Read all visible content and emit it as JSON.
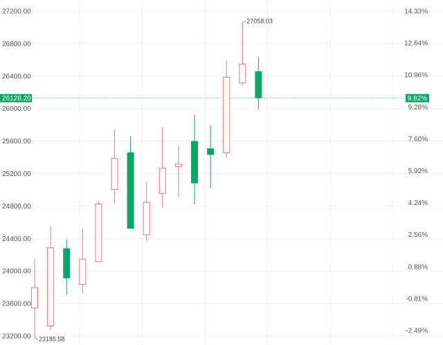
{
  "chart_data": {
    "type": "candlestick",
    "y_ticks_left": [
      "27200.00",
      "26800.00",
      "26400.00",
      "26000.00",
      "25600.00",
      "25200.00",
      "24800.00",
      "24400.00",
      "24000.00",
      "23600.00",
      "23200.00"
    ],
    "y_ticks_right": [
      "14.33%",
      "12.64%",
      "10.96%",
      "9.28%",
      "7.60%",
      "5.92%",
      "4.24%",
      "2.56%",
      "0.88%",
      "-0.81%",
      "-2.49%"
    ],
    "ylim": [
      23180,
      27240
    ],
    "candles": [
      {
        "open": 23540,
        "high": 24150,
        "low": 23185.58,
        "close": 23800
      },
      {
        "open": 23320,
        "high": 24550,
        "low": 23270,
        "close": 24290
      },
      {
        "open": 24280,
        "high": 24390,
        "low": 23700,
        "close": 23910
      },
      {
        "open": 23830,
        "high": 24520,
        "low": 23720,
        "close": 24150
      },
      {
        "open": 24110,
        "high": 24860,
        "low": 24110,
        "close": 24830
      },
      {
        "open": 25000,
        "high": 25740,
        "low": 24840,
        "close": 25390
      },
      {
        "open": 25460,
        "high": 25660,
        "low": 24520,
        "close": 24520
      },
      {
        "open": 24440,
        "high": 25100,
        "low": 24370,
        "close": 24850
      },
      {
        "open": 24950,
        "high": 25770,
        "low": 24780,
        "close": 25270
      },
      {
        "open": 25280,
        "high": 25550,
        "low": 24910,
        "close": 25320
      },
      {
        "open": 25600,
        "high": 25920,
        "low": 24820,
        "close": 25080
      },
      {
        "open": 25510,
        "high": 25790,
        "low": 25020,
        "close": 25430
      },
      {
        "open": 25450,
        "high": 26590,
        "low": 25390,
        "close": 26390
      },
      {
        "open": 26310,
        "high": 27058.03,
        "low": 26290,
        "close": 26550
      },
      {
        "open": 26460,
        "high": 26640,
        "low": 25990,
        "close": 26128.2
      }
    ],
    "annotations": {
      "high_label": "27058.03",
      "low_label": "23185.58"
    },
    "current_price": {
      "value": 26128.2,
      "label": "26128.20",
      "pct_label": "9.82%"
    },
    "grid": true,
    "colors": {
      "up": "#f1707a",
      "down": "#0fa46a",
      "grid": "#f0f0f0",
      "text": "#555555",
      "tag_bg": "#0fa46a",
      "current_line": "#6fc29d"
    }
  }
}
